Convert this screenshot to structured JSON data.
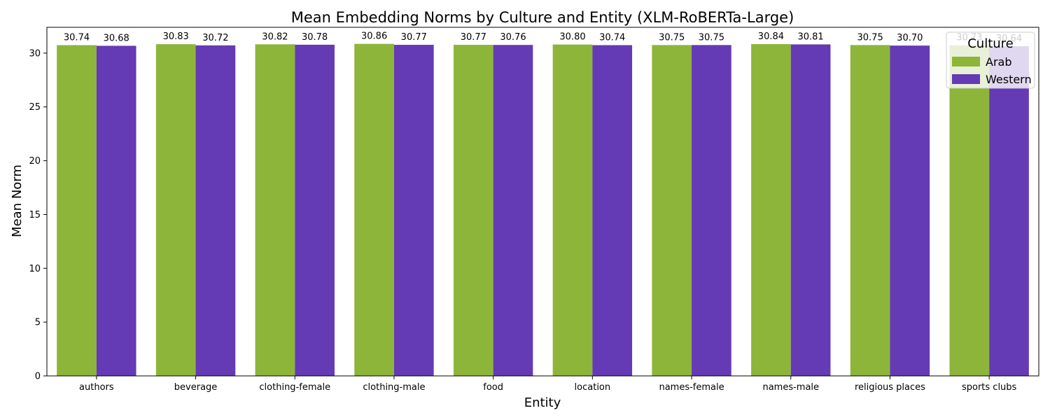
{
  "chart_data": {
    "type": "bar",
    "title": "Mean Embedding Norms by Culture and Entity (XLM-RoBERTa-Large)",
    "xlabel": "Entity",
    "ylabel": "Mean Norm",
    "categories": [
      "authors",
      "beverage",
      "clothing-female",
      "clothing-male",
      "food",
      "location",
      "names-female",
      "names-male",
      "religious places",
      "sports clubs"
    ],
    "series": [
      {
        "name": "Arab",
        "color": "#8db53a",
        "values": [
          30.74,
          30.83,
          30.82,
          30.86,
          30.77,
          30.8,
          30.75,
          30.84,
          30.75,
          30.73
        ]
      },
      {
        "name": "Western",
        "color": "#643ab5",
        "values": [
          30.68,
          30.72,
          30.78,
          30.77,
          30.76,
          30.74,
          30.75,
          30.81,
          30.7,
          30.64
        ]
      }
    ],
    "data_labels": [
      [
        "30.74",
        "30.83",
        "30.82",
        "30.86",
        "30.77",
        "30.80",
        "30.75",
        "30.84",
        "30.75",
        "30.73"
      ],
      [
        "30.68",
        "30.72",
        "30.78",
        "30.77",
        "30.76",
        "30.74",
        "30.75",
        "30.81",
        "30.70",
        "30.64"
      ]
    ],
    "ylim": [
      0,
      32.4
    ],
    "yticks": [
      0,
      5,
      10,
      15,
      20,
      25,
      30
    ],
    "ytick_labels": [
      "0",
      "5",
      "10",
      "15",
      "20",
      "25",
      "30"
    ],
    "grid": false,
    "legend": {
      "title": "Culture",
      "placement": "top-right"
    }
  }
}
